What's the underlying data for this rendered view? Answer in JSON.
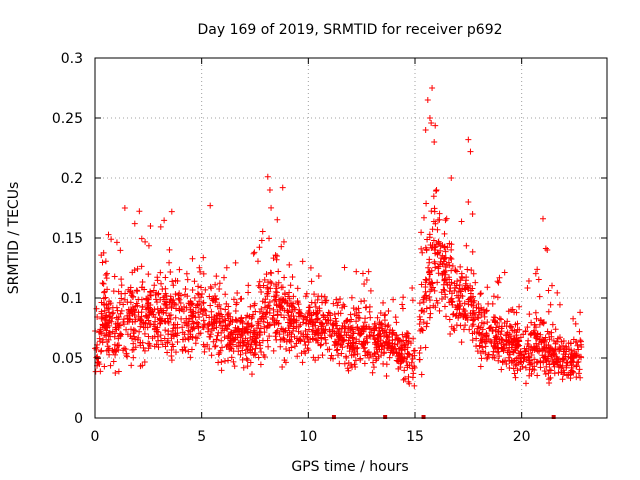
{
  "chart_data": {
    "type": "scatter",
    "title": "Day 169 of 2019, SRMTID for receiver p692",
    "xlabel": "GPS time / hours",
    "ylabel": "SRMTID / TECUs",
    "xlim": [
      0,
      24
    ],
    "ylim": [
      0,
      0.3
    ],
    "x_ticks": [
      0,
      5,
      10,
      15,
      20
    ],
    "x_tick_labels": [
      "0",
      "5",
      "10",
      "15",
      "20"
    ],
    "y_ticks": [
      0,
      0.05,
      0.1,
      0.15,
      0.2,
      0.25,
      0.3
    ],
    "y_tick_labels": [
      "0",
      "0.05",
      "0.1",
      "0.15",
      "0.2",
      "0.25",
      "0.3"
    ],
    "grid": true,
    "marker": "plus",
    "series_color": "#ff0000",
    "zero_marker_color": "#cc0000",
    "zero_markers_x": [
      11.2,
      13.6,
      15.4,
      21.5
    ],
    "envelope_x": [
      0.0,
      0.5,
      1.0,
      1.5,
      2.0,
      2.5,
      3.0,
      3.5,
      4.0,
      4.5,
      5.0,
      5.5,
      6.0,
      6.5,
      7.0,
      7.5,
      8.0,
      8.5,
      9.0,
      9.5,
      10.0,
      10.5,
      11.0,
      11.5,
      12.0,
      12.5,
      13.0,
      13.5,
      14.0,
      14.5,
      15.0,
      15.5,
      16.0,
      16.5,
      17.0,
      17.5,
      18.0,
      18.5,
      19.0,
      19.5,
      20.0,
      20.5,
      21.0,
      21.5,
      22.0,
      22.5,
      22.8
    ],
    "envelope_median": [
      0.065,
      0.08,
      0.075,
      0.085,
      0.078,
      0.082,
      0.09,
      0.088,
      0.085,
      0.08,
      0.09,
      0.085,
      0.075,
      0.07,
      0.065,
      0.07,
      0.09,
      0.095,
      0.085,
      0.08,
      0.075,
      0.08,
      0.075,
      0.07,
      0.065,
      0.07,
      0.065,
      0.07,
      0.06,
      0.055,
      0.05,
      0.11,
      0.14,
      0.12,
      0.1,
      0.1,
      0.075,
      0.07,
      0.065,
      0.06,
      0.055,
      0.06,
      0.055,
      0.055,
      0.05,
      0.05,
      0.06
    ],
    "envelope_spread": [
      0.035,
      0.04,
      0.04,
      0.045,
      0.045,
      0.045,
      0.05,
      0.05,
      0.045,
      0.04,
      0.045,
      0.04,
      0.04,
      0.035,
      0.03,
      0.04,
      0.05,
      0.055,
      0.045,
      0.04,
      0.035,
      0.035,
      0.035,
      0.035,
      0.03,
      0.03,
      0.03,
      0.035,
      0.03,
      0.03,
      0.03,
      0.06,
      0.07,
      0.055,
      0.045,
      0.04,
      0.035,
      0.035,
      0.03,
      0.03,
      0.025,
      0.04,
      0.04,
      0.03,
      0.025,
      0.025,
      0.025
    ],
    "point_count": 2400,
    "peaks": [
      {
        "x": 1.4,
        "y": 0.175
      },
      {
        "x": 2.6,
        "y": 0.16
      },
      {
        "x": 3.6,
        "y": 0.172
      },
      {
        "x": 5.4,
        "y": 0.177
      },
      {
        "x": 8.1,
        "y": 0.201
      },
      {
        "x": 8.2,
        "y": 0.19
      },
      {
        "x": 8.8,
        "y": 0.192
      },
      {
        "x": 15.8,
        "y": 0.275
      },
      {
        "x": 15.6,
        "y": 0.265
      },
      {
        "x": 15.7,
        "y": 0.25
      },
      {
        "x": 15.5,
        "y": 0.24
      },
      {
        "x": 15.9,
        "y": 0.23
      },
      {
        "x": 17.5,
        "y": 0.232
      },
      {
        "x": 17.6,
        "y": 0.222
      },
      {
        "x": 16.7,
        "y": 0.2
      },
      {
        "x": 17.5,
        "y": 0.18
      },
      {
        "x": 17.7,
        "y": 0.17
      },
      {
        "x": 21.0,
        "y": 0.166
      },
      {
        "x": 21.2,
        "y": 0.14
      }
    ]
  }
}
